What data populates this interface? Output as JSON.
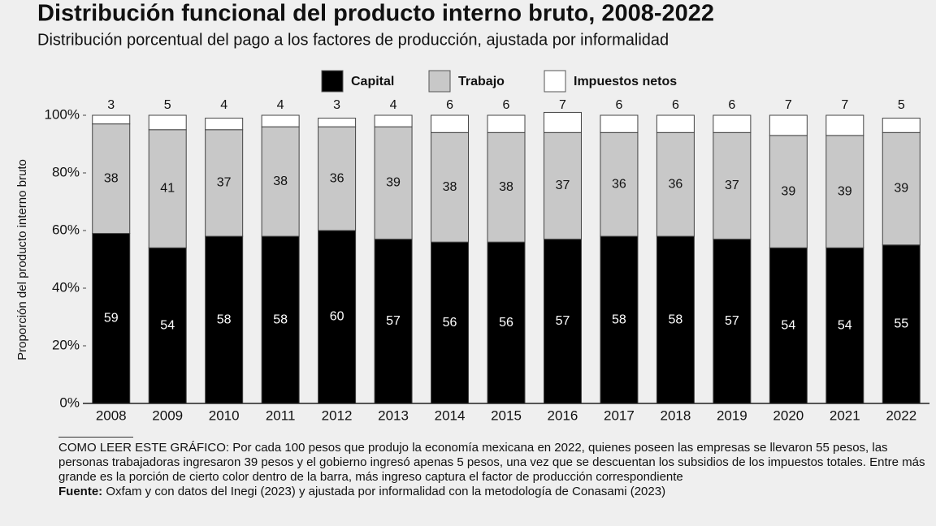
{
  "chart_data": {
    "type": "bar",
    "stacked": true,
    "title": "Distribución funcional del producto interno bruto, 2008-2022",
    "subtitle": "Distribución porcentual del pago a los factores de producción, ajustada por informalidad",
    "y_label": "Proporción del producto interno bruto",
    "categories": [
      "2008",
      "2009",
      "2010",
      "2011",
      "2012",
      "2013",
      "2014",
      "2015",
      "2016",
      "2017",
      "2018",
      "2019",
      "2020",
      "2021",
      "2022"
    ],
    "series": [
      {
        "name": "Capital",
        "color": "#000000",
        "values": [
          59,
          54,
          58,
          58,
          60,
          57,
          56,
          56,
          57,
          58,
          58,
          57,
          54,
          54,
          55
        ]
      },
      {
        "name": "Trabajo",
        "color": "#c8c8c8",
        "values": [
          38,
          41,
          37,
          38,
          36,
          39,
          38,
          38,
          37,
          36,
          36,
          37,
          39,
          39,
          39
        ]
      },
      {
        "name": "Impuestos netos",
        "color": "#ffffff",
        "values": [
          3,
          5,
          4,
          4,
          3,
          4,
          6,
          6,
          7,
          6,
          6,
          6,
          7,
          7,
          5
        ]
      }
    ],
    "ylim": [
      0,
      100
    ],
    "yticks": [
      {
        "value": 0,
        "label": "0%"
      },
      {
        "value": 20,
        "label": "20%"
      },
      {
        "value": 40,
        "label": "40%"
      },
      {
        "value": 60,
        "label": "60%"
      },
      {
        "value": 80,
        "label": "80%"
      },
      {
        "value": 100,
        "label": "100%"
      }
    ],
    "grid": false,
    "note": "COMO LEER ESTE GRÁFICO: Por cada 100 pesos que produjo la economía mexicana en 2022, quienes poseen las empresas se llevaron 55 pesos, las personas trabajadoras ingresaron 39 pesos y el gobierno ingresó apenas 5 pesos, una vez que se descuentan los subsidios de los impuestos totales. Entre más grande es la porción de cierto color dentro de la barra, más ingreso captura el factor de producción correspondiente",
    "source_label": "Fuente:",
    "source": "Oxfam y con datos del Inegi (2023) y ajustada por informalidad con la metodología de Conasami (2023)"
  }
}
